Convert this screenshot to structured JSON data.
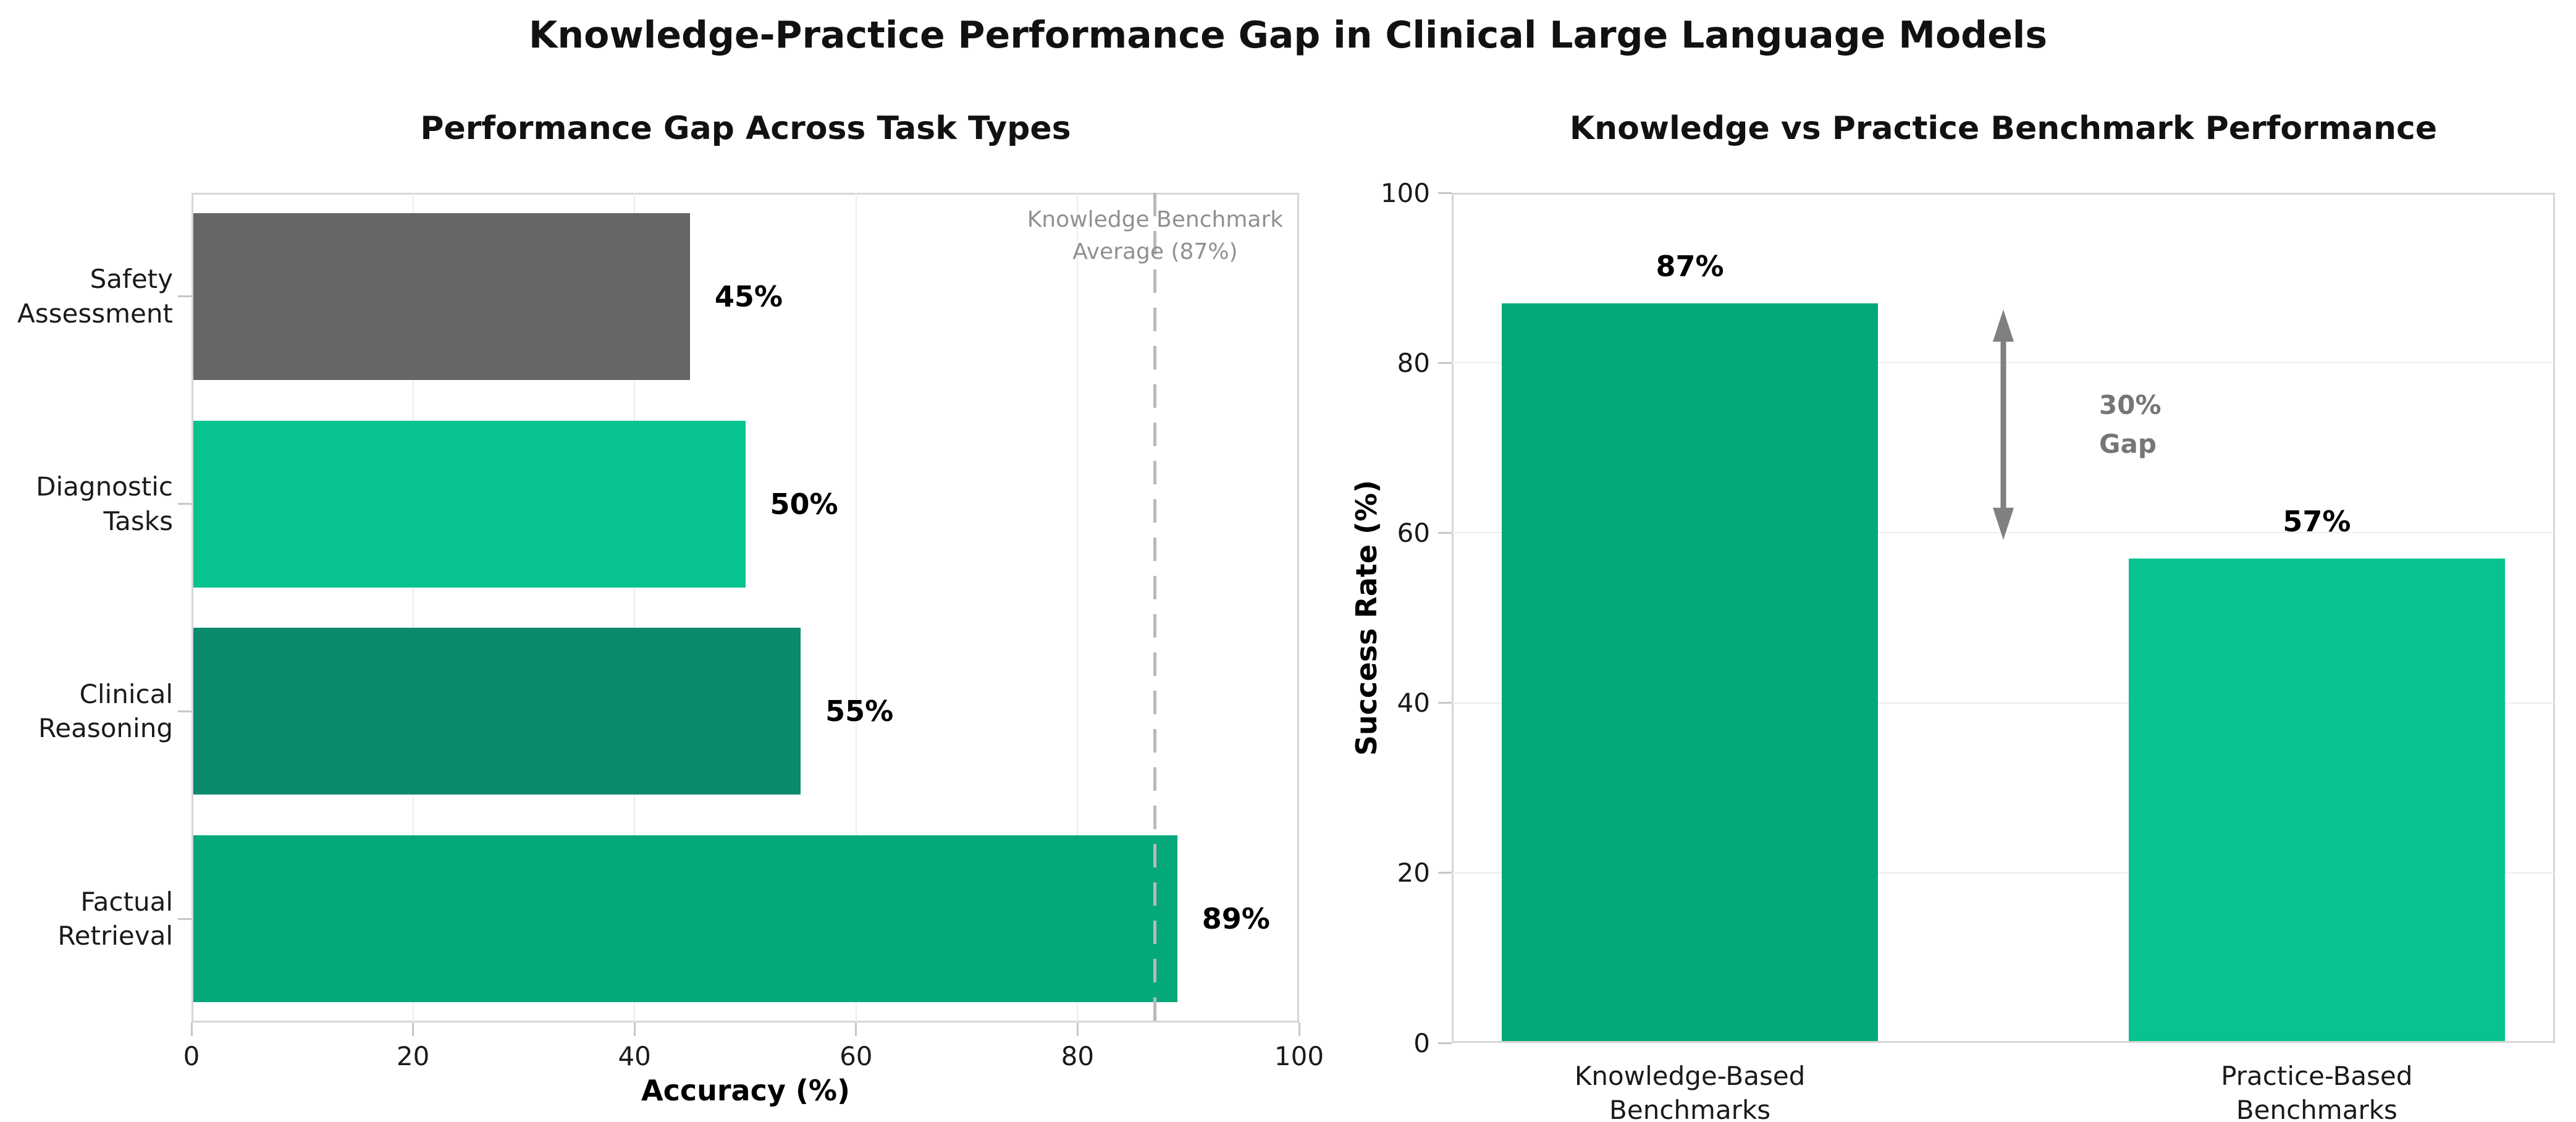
{
  "figure_title": "Knowledge-Practice Performance Gap in Clinical Large Language Models",
  "chart_data": [
    {
      "type": "bar",
      "orientation": "horizontal",
      "title": "Performance Gap Across Task Types",
      "categories": [
        "Safety\nAssessment",
        "Diagnostic\nTasks",
        "Clinical\nReasoning",
        "Factual\nRetrieval"
      ],
      "values": [
        45,
        50,
        55,
        89
      ],
      "value_labels": [
        "45%",
        "50%",
        "55%",
        "89%"
      ],
      "bar_colors": [
        "#666666",
        "#06C390",
        "#0B8A6E",
        "#04A87B"
      ],
      "xlabel": "Accuracy (%)",
      "xlim": [
        0,
        100
      ],
      "xticks": [
        "0",
        "20",
        "40",
        "60",
        "80",
        "100"
      ],
      "grid": "vertical",
      "reference_line": {
        "value": 87,
        "label": "Knowledge Benchmark\nAverage (87%)",
        "style": "dashed",
        "color": "#b9b9b9",
        "label_color": "#909090"
      }
    },
    {
      "type": "bar",
      "orientation": "vertical",
      "title": "Knowledge vs Practice Benchmark Performance",
      "categories": [
        "Knowledge-Based\nBenchmarks",
        "Practice-Based\nBenchmarks"
      ],
      "values": [
        87,
        57
      ],
      "value_labels": [
        "87%",
        "57%"
      ],
      "bar_colors": [
        "#04A87B",
        "#06C390"
      ],
      "ylabel": "Success Rate (%)",
      "ylim": [
        0,
        100
      ],
      "yticks": [
        "0",
        "20",
        "40",
        "60",
        "80",
        "100"
      ],
      "grid": "horizontal",
      "gap_annotation": {
        "text": "30%\nGap",
        "from_value": 87,
        "to_value": 57,
        "arrow_color": "#808080",
        "text_color": "#767676"
      }
    }
  ]
}
